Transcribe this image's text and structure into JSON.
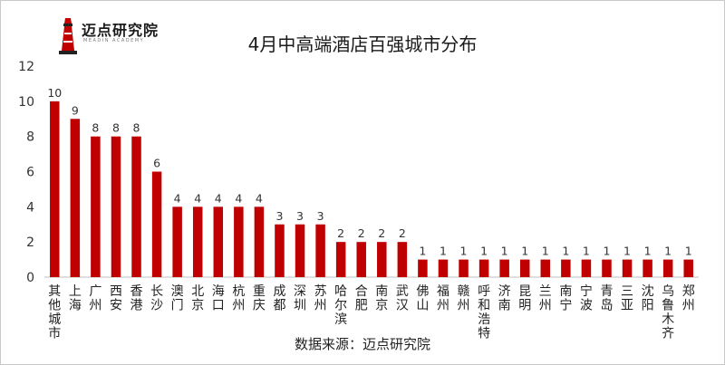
{
  "logo": {
    "text": "迈点研究院",
    "subtitle": "MEADIN ACADEMY"
  },
  "source": "数据来源：迈点研究院",
  "colors": {
    "bar": "#c00000",
    "axis": "#bfbfbf",
    "text": "#333333"
  },
  "chart_data": {
    "type": "bar",
    "title": "4月中高端酒店百强城市分布",
    "categories": [
      "其他城市",
      "上海",
      "广州",
      "西安",
      "香港",
      "长沙",
      "澳门",
      "北京",
      "海口",
      "杭州",
      "重庆",
      "成都",
      "深圳",
      "苏州",
      "哈尔滨",
      "合肥",
      "南京",
      "武汉",
      "佛山",
      "福州",
      "赣州",
      "呼和浩特",
      "济南",
      "昆明",
      "兰州",
      "南宁",
      "宁波",
      "青岛",
      "三亚",
      "沈阳",
      "乌鲁木齐",
      "郑州"
    ],
    "values": [
      10,
      9,
      8,
      8,
      8,
      6,
      4,
      4,
      4,
      4,
      4,
      3,
      3,
      3,
      2,
      2,
      2,
      2,
      1,
      1,
      1,
      1,
      1,
      1,
      1,
      1,
      1,
      1,
      1,
      1,
      1,
      1
    ],
    "ylim": [
      0,
      12
    ],
    "yticks": [
      0,
      2,
      4,
      6,
      8,
      10,
      12
    ],
    "grid": false,
    "legend": "none"
  }
}
